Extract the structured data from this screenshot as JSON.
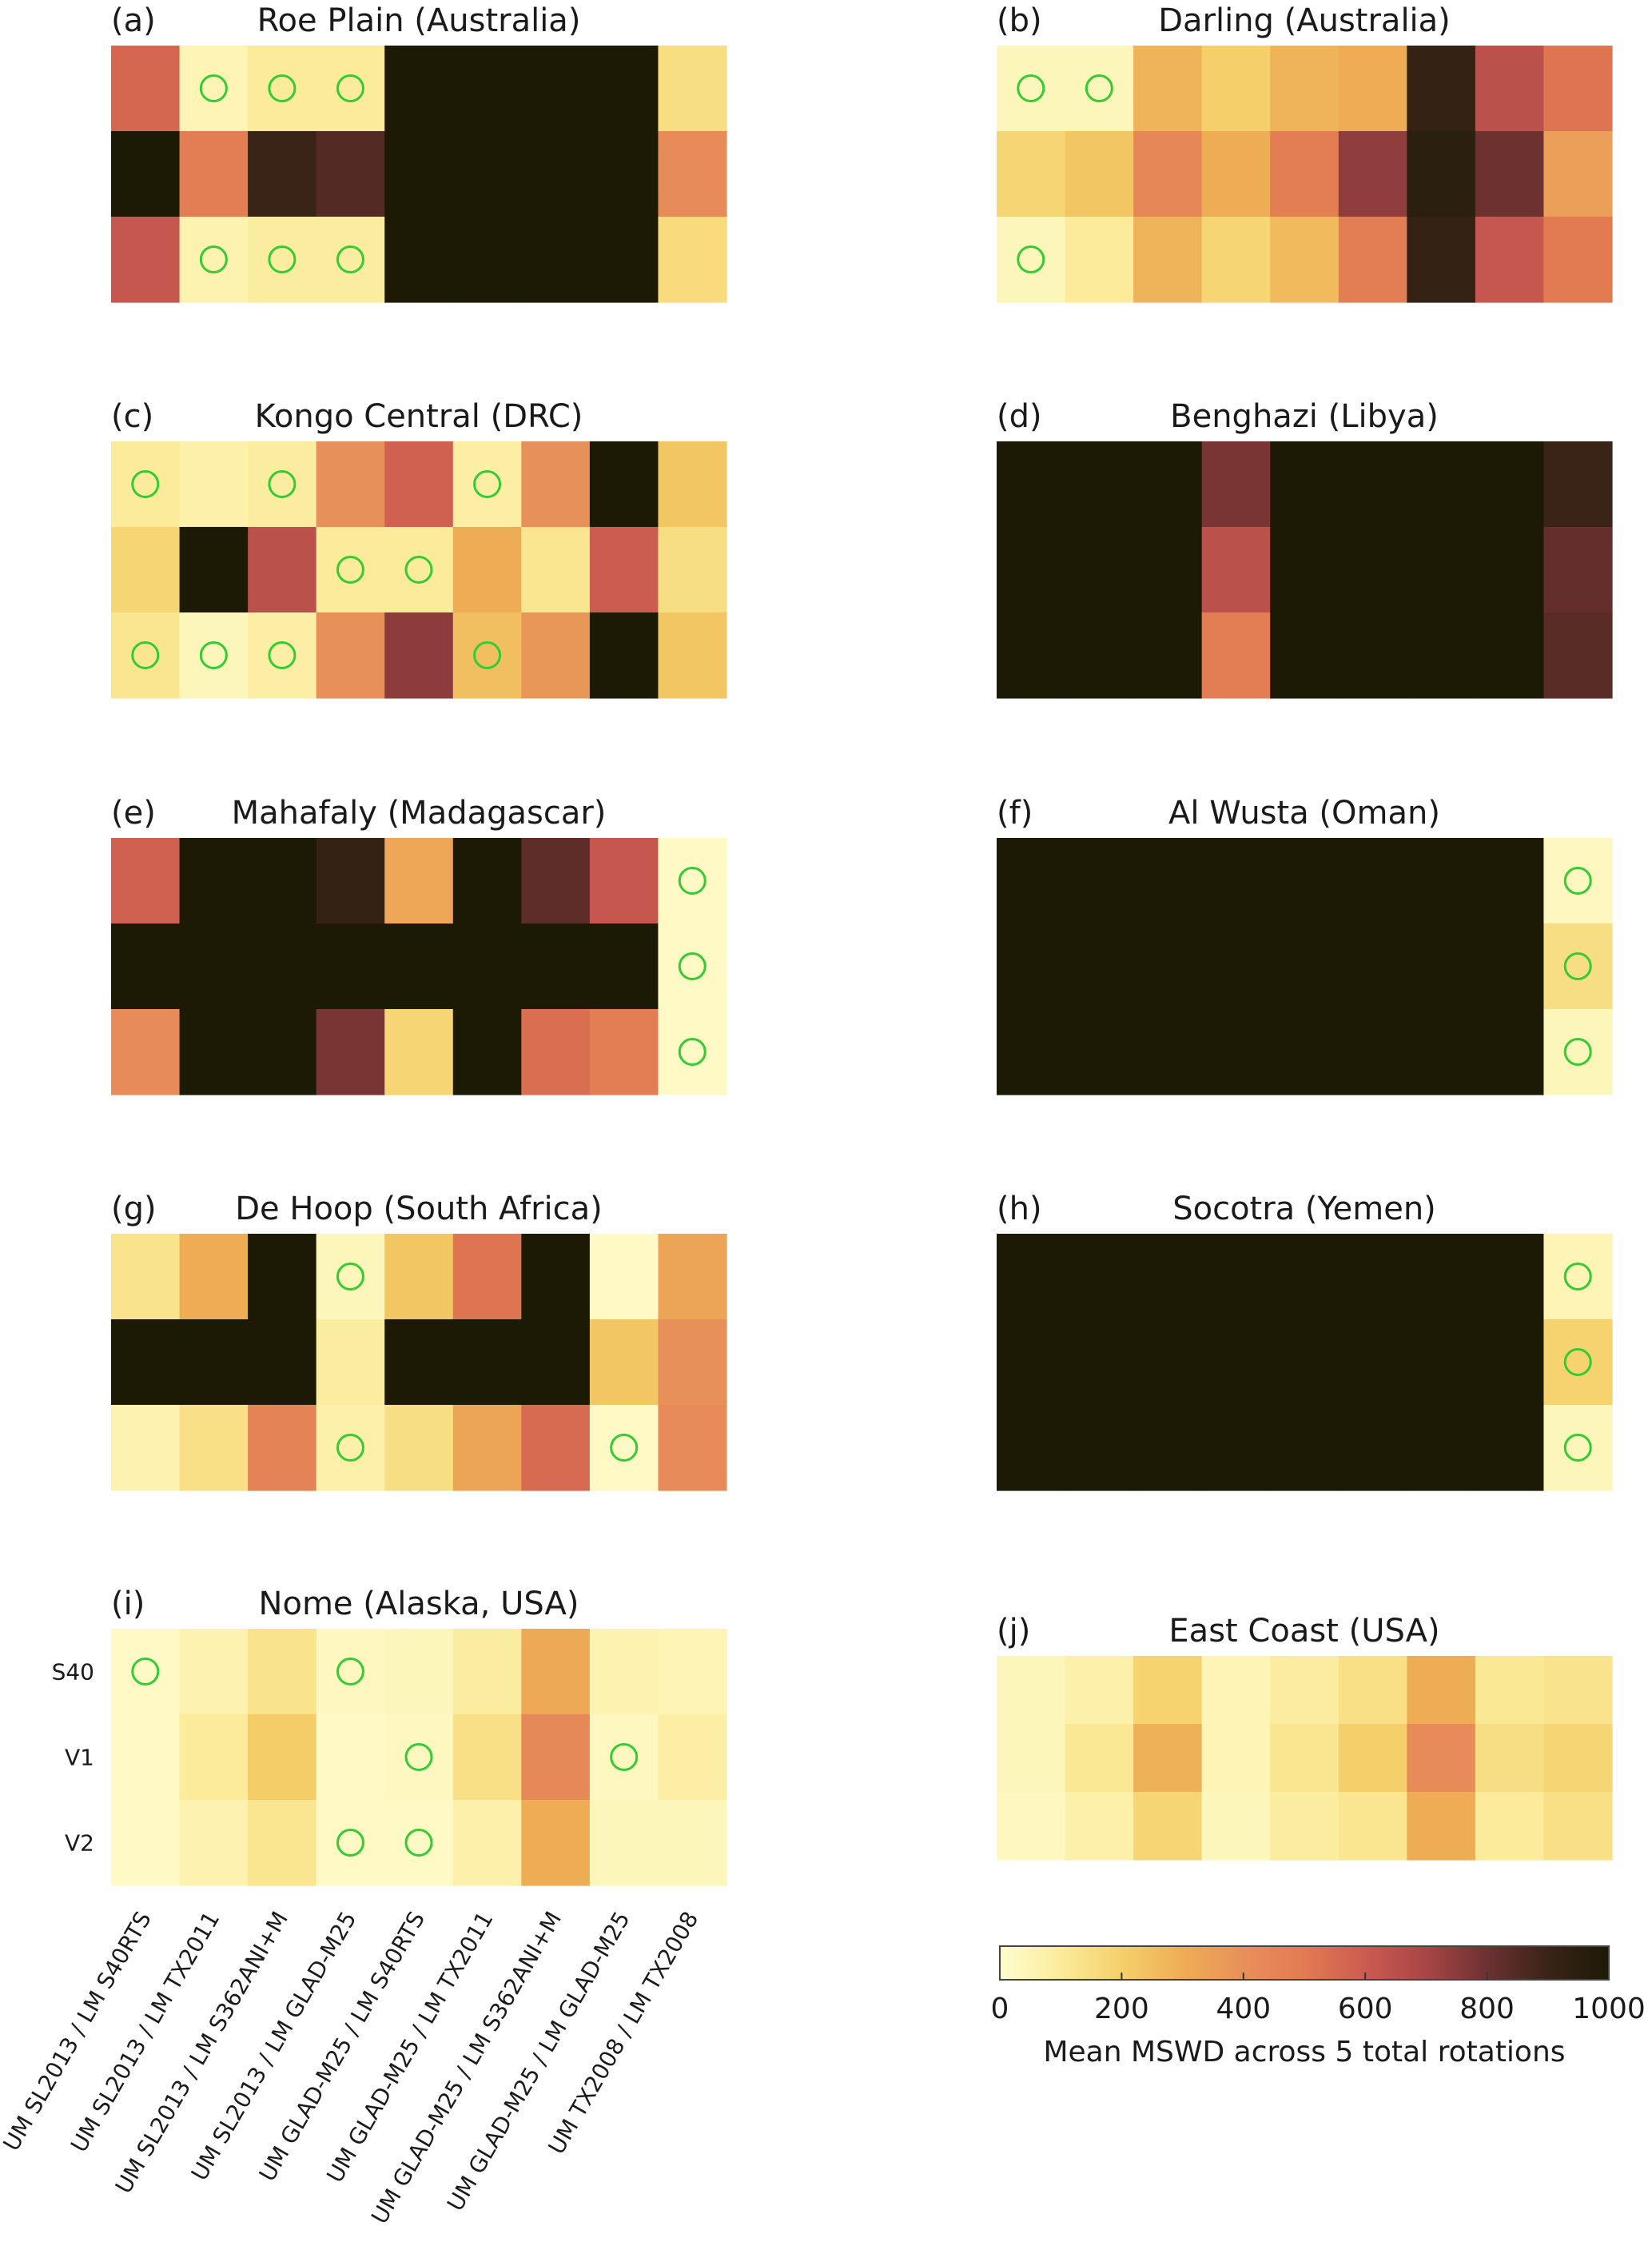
{
  "chart_data": {
    "type": "heatmap",
    "colorbar": {
      "label": "Mean MSWD across 5 total rotations",
      "range": [
        0,
        1000
      ],
      "ticks": [
        "0",
        "200",
        "400",
        "600",
        "800",
        "1000"
      ],
      "colormap": [
        "#fffdd0",
        "#fbeb9a",
        "#f5d06a",
        "#eead55",
        "#e8905a",
        "#e27a52",
        "#cc5b50",
        "#a84646",
        "#6d3130",
        "#3a2418",
        "#1c1a05"
      ]
    },
    "marker_color": "#33cc33",
    "columns": [
      "UM SL2013 / LM S40RTS",
      "UM SL2013 / LM TX2011",
      "UM SL2013 / LM S362ANI+M",
      "UM SL2013 / LM GLAD-M25",
      "UM GLAD-M25 / LM S40RTS",
      "UM GLAD-M25 / LM TX2011",
      "UM GLAD-M25 / LM S362ANI+M",
      "UM GLAD-M25 / LM GLAD-M25",
      "UM TX2008 / LM TX2008"
    ],
    "rows": [
      "S40",
      "V1",
      "V2"
    ],
    "panels": [
      {
        "label": "(a)",
        "title": "Roe Plain (Australia)",
        "values": [
          [
            560,
            50,
            100,
            100,
            1000,
            1000,
            1000,
            1000,
            150
          ],
          [
            1000,
            480,
            900,
            850,
            1000,
            1000,
            1000,
            1000,
            420
          ],
          [
            620,
            60,
            90,
            90,
            1000,
            1000,
            1000,
            1000,
            160
          ]
        ],
        "markers": [
          [
            0,
            1
          ],
          [
            0,
            2
          ],
          [
            0,
            3
          ],
          [
            2,
            1
          ],
          [
            2,
            2
          ],
          [
            2,
            3
          ]
        ]
      },
      {
        "label": "(b)",
        "title": "Darling (Australia)",
        "values": [
          [
            40,
            40,
            280,
            200,
            280,
            300,
            920,
            650,
            520
          ],
          [
            180,
            230,
            440,
            300,
            480,
            740,
            950,
            800,
            350
          ],
          [
            40,
            100,
            280,
            180,
            260,
            480,
            920,
            620,
            500
          ]
        ],
        "markers": [
          [
            0,
            0
          ],
          [
            0,
            1
          ],
          [
            2,
            0
          ]
        ]
      },
      {
        "label": "(c)",
        "title": "Kongo Central (DRC)",
        "values": [
          [
            100,
            70,
            90,
            400,
            580,
            80,
            400,
            1000,
            230
          ],
          [
            180,
            1000,
            650,
            100,
            100,
            300,
            120,
            600,
            150
          ],
          [
            120,
            40,
            80,
            400,
            750,
            250,
            380,
            1000,
            230
          ]
        ],
        "markers": [
          [
            0,
            0
          ],
          [
            0,
            2
          ],
          [
            0,
            5
          ],
          [
            1,
            3
          ],
          [
            1,
            4
          ],
          [
            2,
            0
          ],
          [
            2,
            1
          ],
          [
            2,
            2
          ],
          [
            2,
            5
          ]
        ]
      },
      {
        "label": "(d)",
        "title": "Benghazi (Libya)",
        "values": [
          [
            1000,
            1000,
            1000,
            780,
            1000,
            1000,
            1000,
            1000,
            900
          ],
          [
            1000,
            1000,
            1000,
            650,
            1000,
            1000,
            1000,
            1000,
            820
          ],
          [
            1000,
            1000,
            1000,
            480,
            1000,
            1000,
            1000,
            1000,
            840
          ]
        ],
        "markers": []
      },
      {
        "label": "(e)",
        "title": "Mahafaly (Madagascar)",
        "values": [
          [
            580,
            1000,
            1000,
            920,
            320,
            1000,
            830,
            620,
            20
          ],
          [
            1000,
            1000,
            1000,
            1000,
            1000,
            1000,
            1000,
            1000,
            20
          ],
          [
            420,
            1000,
            1000,
            780,
            180,
            1000,
            540,
            480,
            20
          ]
        ],
        "markers": [
          [
            0,
            8
          ],
          [
            1,
            8
          ],
          [
            2,
            8
          ]
        ]
      },
      {
        "label": "(f)",
        "title": "Al Wusta (Oman)",
        "values": [
          [
            1000,
            1000,
            1000,
            1000,
            1000,
            1000,
            1000,
            1000,
            30
          ],
          [
            1000,
            1000,
            1000,
            1000,
            1000,
            1000,
            1000,
            1000,
            150
          ],
          [
            1000,
            1000,
            1000,
            1000,
            1000,
            1000,
            1000,
            1000,
            40
          ]
        ],
        "markers": [
          [
            0,
            8
          ],
          [
            1,
            8
          ],
          [
            2,
            8
          ]
        ]
      },
      {
        "label": "(g)",
        "title": "De Hoop (South Africa)",
        "values": [
          [
            130,
            300,
            1000,
            40,
            230,
            520,
            1000,
            20,
            330
          ],
          [
            1000,
            1000,
            1000,
            90,
            1000,
            1000,
            1000,
            230,
            400
          ],
          [
            60,
            140,
            460,
            70,
            150,
            330,
            550,
            20,
            420
          ]
        ],
        "markers": [
          [
            0,
            3
          ],
          [
            2,
            3
          ],
          [
            2,
            7
          ]
        ]
      },
      {
        "label": "(h)",
        "title": "Socotra (Yemen)",
        "values": [
          [
            1000,
            1000,
            1000,
            1000,
            1000,
            1000,
            1000,
            1000,
            50
          ],
          [
            1000,
            1000,
            1000,
            1000,
            1000,
            1000,
            1000,
            1000,
            190
          ],
          [
            1000,
            1000,
            1000,
            1000,
            1000,
            1000,
            1000,
            1000,
            40
          ]
        ],
        "markers": [
          [
            0,
            8
          ],
          [
            1,
            8
          ],
          [
            2,
            8
          ]
        ]
      },
      {
        "label": "(i)",
        "title": "Nome (Alaska, USA)",
        "values": [
          [
            20,
            60,
            130,
            30,
            40,
            90,
            310,
            60,
            50
          ],
          [
            20,
            100,
            210,
            20,
            30,
            140,
            430,
            30,
            80
          ],
          [
            20,
            60,
            120,
            20,
            20,
            70,
            300,
            40,
            40
          ]
        ],
        "markers": [
          [
            0,
            0
          ],
          [
            0,
            3
          ],
          [
            1,
            4
          ],
          [
            1,
            7
          ],
          [
            2,
            3
          ],
          [
            2,
            4
          ]
        ]
      },
      {
        "label": "(j)",
        "title": "East Coast (USA)",
        "values": [
          [
            40,
            70,
            190,
            50,
            90,
            140,
            300,
            110,
            130
          ],
          [
            40,
            110,
            290,
            50,
            120,
            200,
            420,
            150,
            180
          ],
          [
            30,
            70,
            180,
            40,
            90,
            120,
            300,
            100,
            140
          ]
        ],
        "markers": []
      }
    ]
  }
}
